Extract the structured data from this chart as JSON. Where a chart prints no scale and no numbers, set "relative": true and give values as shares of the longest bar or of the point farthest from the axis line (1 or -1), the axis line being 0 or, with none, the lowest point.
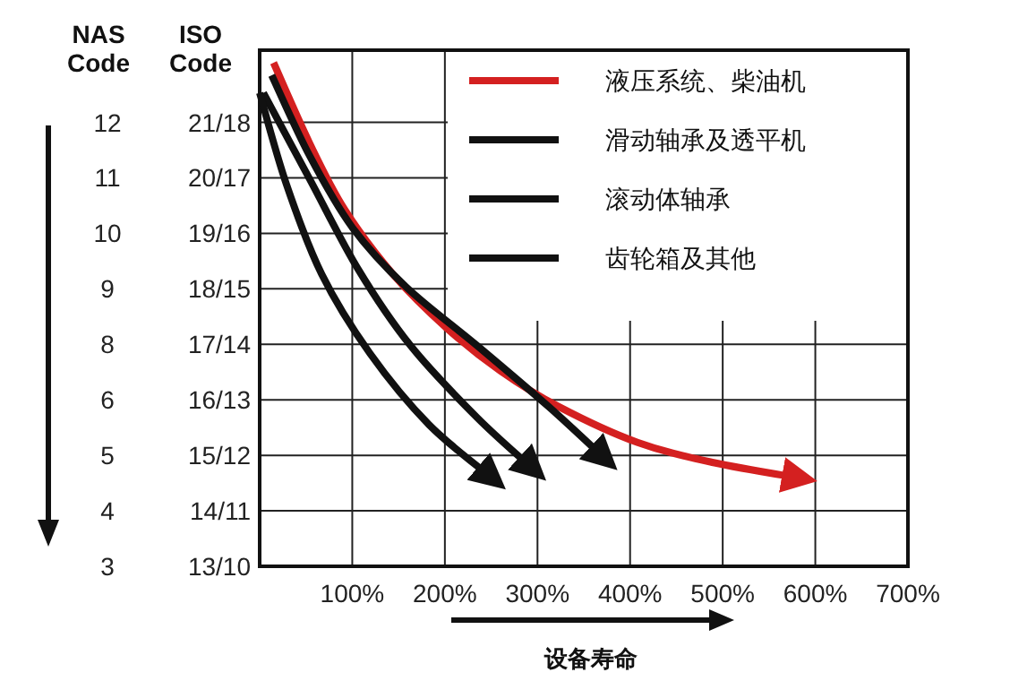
{
  "chart_data": {
    "type": "line",
    "relative": true,
    "xlabel": "设备寿命",
    "ylabel": "ISO Code",
    "annotations": [
      "NAS Code"
    ],
    "xlim": [
      0,
      700
    ],
    "xticks": [
      {
        "value": 100,
        "label": "100%"
      },
      {
        "value": 200,
        "label": "200%"
      },
      {
        "value": 300,
        "label": "300%"
      },
      {
        "value": 400,
        "label": "400%"
      },
      {
        "value": 500,
        "label": "500%"
      },
      {
        "value": 600,
        "label": "600%"
      },
      {
        "value": 700,
        "label": "700%"
      }
    ],
    "y_categories": [
      "21/18",
      "20/17",
      "19/16",
      "18/15",
      "17/14",
      "16/13",
      "15/12",
      "14/11",
      "13/10"
    ],
    "y2_categories": [
      "12",
      "11",
      "10",
      "9",
      "8",
      "6",
      "5",
      "4",
      "3"
    ],
    "grid": true,
    "legend": "top right",
    "line_style": "solid",
    "series": [
      {
        "name": "液压系统、柴油机",
        "color": "#d42020",
        "x": [
          15,
          54,
          92,
          144,
          202,
          260,
          323,
          408,
          490,
          587
        ],
        "values": [
          1.0,
          0.84,
          0.708,
          0.58,
          0.473,
          0.388,
          0.317,
          0.246,
          0.206,
          0.174
        ]
      },
      {
        "name": "滑动轴承及透平机",
        "color": "#111111",
        "x": [
          13,
          54,
          100,
          158,
          235,
          312,
          375
        ],
        "values": [
          0.975,
          0.815,
          0.673,
          0.555,
          0.438,
          0.317,
          0.21
        ]
      },
      {
        "name": "滚动体轴承",
        "color": "#111111",
        "x": [
          4,
          54,
          106,
          163,
          235,
          298
        ],
        "values": [
          0.94,
          0.769,
          0.591,
          0.438,
          0.295,
          0.189
        ]
      },
      {
        "name": "齿轮箱及其他",
        "color": "#111111",
        "x": [
          0,
          29,
          67,
          119,
          183,
          254
        ],
        "values": [
          0.94,
          0.758,
          0.58,
          0.423,
          0.281,
          0.171
        ]
      }
    ]
  }
}
